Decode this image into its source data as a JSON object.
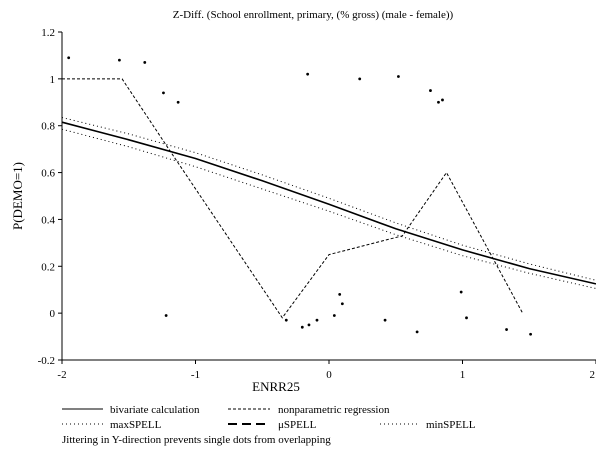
{
  "chart_data": {
    "type": "line",
    "title": "Z-Diff. (School enrollment, primary, (% gross) (male - female))",
    "xlabel": "ENRR25",
    "ylabel": "P(DEMO=1)",
    "xlim": [
      -2,
      2
    ],
    "ylim": [
      -0.2,
      1.2
    ],
    "xticks": [
      -2,
      -1,
      0,
      1,
      2
    ],
    "xtick_labels": [
      "-2",
      "-1",
      "0",
      "1",
      "2"
    ],
    "yticks": [
      -0.2,
      0,
      0.2,
      0.4,
      0.6,
      0.8,
      1,
      1.2
    ],
    "ytick_labels": [
      "-0.2",
      "0",
      "0.2",
      "0.4",
      "0.6",
      "0.8",
      "1",
      "1.2"
    ],
    "grid": false,
    "series": [
      {
        "name": "bivariate calculation",
        "style": "solid",
        "x": [
          -2,
          -1.5,
          -1,
          -0.5,
          0,
          0.5,
          1,
          1.5,
          2
        ],
        "y": [
          0.815,
          0.74,
          0.66,
          0.565,
          0.465,
          0.36,
          0.27,
          0.19,
          0.125
        ]
      },
      {
        "name": "nonparametric regression",
        "style": "dashed",
        "x": [
          -2,
          -1.55,
          -1.2,
          -0.35,
          0,
          0.55,
          0.88,
          1.45
        ],
        "y": [
          1.0,
          1.0,
          0.7,
          -0.02,
          0.25,
          0.33,
          0.6,
          0.0
        ]
      },
      {
        "name": "maxSPELL",
        "style": "dotted",
        "x": [
          -2,
          -1.5,
          -1,
          -0.5,
          0,
          0.5,
          1,
          1.5,
          2
        ],
        "y": [
          0.835,
          0.765,
          0.685,
          0.59,
          0.49,
          0.385,
          0.29,
          0.21,
          0.14
        ]
      },
      {
        "name": "μSPELL",
        "style": "longdash",
        "x": [],
        "y": []
      },
      {
        "name": "minSPELL",
        "style": "dotted",
        "x": [
          -2,
          -1.5,
          -1,
          -0.5,
          0,
          0.5,
          1,
          1.5,
          2
        ],
        "y": [
          0.785,
          0.71,
          0.625,
          0.53,
          0.435,
          0.335,
          0.245,
          0.17,
          0.105
        ]
      }
    ],
    "scatter": {
      "x": [
        -1.95,
        -1.57,
        -1.38,
        -1.24,
        -1.13,
        -1.22,
        -0.32,
        -0.2,
        -0.15,
        -0.09,
        -0.16,
        0.04,
        0.08,
        0.1,
        0.23,
        0.42,
        0.52,
        0.66,
        0.76,
        0.82,
        0.85,
        0.99,
        1.03,
        1.33,
        1.51
      ],
      "y": [
        1.09,
        1.08,
        1.07,
        0.94,
        0.9,
        -0.01,
        -0.03,
        -0.06,
        -0.05,
        -0.03,
        1.02,
        -0.01,
        0.08,
        0.04,
        1.0,
        -0.03,
        1.01,
        -0.08,
        0.95,
        0.9,
        0.91,
        0.09,
        -0.02,
        -0.07,
        -0.09
      ]
    },
    "legend": {
      "placement": "bottom",
      "note": "Jittering in Y-direction prevents single dots from overlapping"
    }
  }
}
